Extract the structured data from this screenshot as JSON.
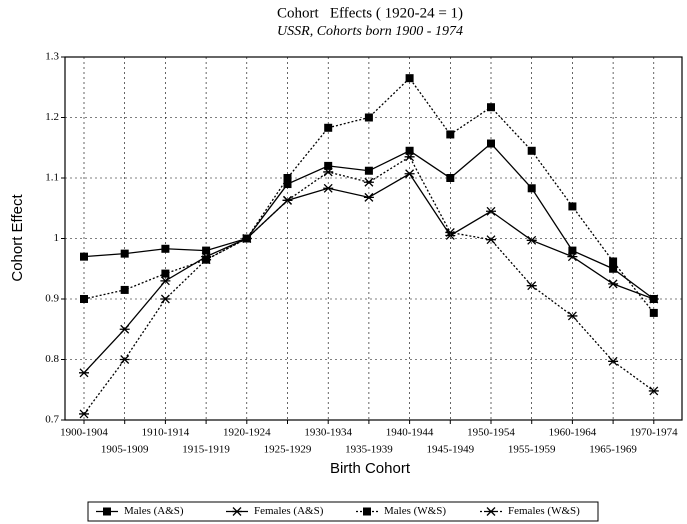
{
  "chart_data": {
    "type": "line",
    "title": "Cohort   Effects ( 1920-24 = 1)",
    "subtitle": "USSR, Cohorts born 1900 - 1974",
    "x_label": "Birth Cohort",
    "y_label": "Cohort Effect",
    "categories": [
      "1900-1904",
      "1905-1909",
      "1910-1914",
      "1915-1919",
      "1920-1924",
      "1925-1929",
      "1930-1934",
      "1935-1939",
      "1940-1944",
      "1945-1949",
      "1950-1954",
      "1955-1959",
      "1960-1964",
      "1965-1969",
      "1970-1974"
    ],
    "ylim": [
      0.7,
      1.3
    ],
    "yticks": [
      0.7,
      0.8,
      0.9,
      1,
      1.1,
      1.2,
      1.3
    ],
    "grid": true,
    "legend": "bottom",
    "series": [
      {
        "name": "Males (A&S)",
        "color": "#000000",
        "marker": "square",
        "line_style": "solid",
        "values": [
          0.97,
          0.975,
          0.983,
          0.98,
          1.0,
          1.09,
          1.12,
          1.112,
          1.145,
          1.1,
          1.157,
          1.083,
          0.98,
          0.95,
          0.9
        ]
      },
      {
        "name": "Females (A&S)",
        "color": "#000000",
        "marker": "x",
        "line_style": "solid",
        "values": [
          0.778,
          0.85,
          0.93,
          0.97,
          1.0,
          1.063,
          1.083,
          1.068,
          1.107,
          1.005,
          1.045,
          0.997,
          0.97,
          0.925,
          0.9
        ]
      },
      {
        "name": "Males (W&S)",
        "color": "#000000",
        "marker": "square",
        "line_style": "dotted",
        "values": [
          0.9,
          0.915,
          0.942,
          0.965,
          1.0,
          1.1,
          1.183,
          1.2,
          1.265,
          1.172,
          1.217,
          1.145,
          1.053,
          0.962,
          0.877
        ]
      },
      {
        "name": "Females (W&S)",
        "color": "#000000",
        "marker": "x",
        "line_style": "dotted",
        "values": [
          0.71,
          0.8,
          0.9,
          0.965,
          1.0,
          1.063,
          1.11,
          1.093,
          1.135,
          1.01,
          0.998,
          0.922,
          0.872,
          0.797,
          0.748
        ]
      }
    ]
  }
}
